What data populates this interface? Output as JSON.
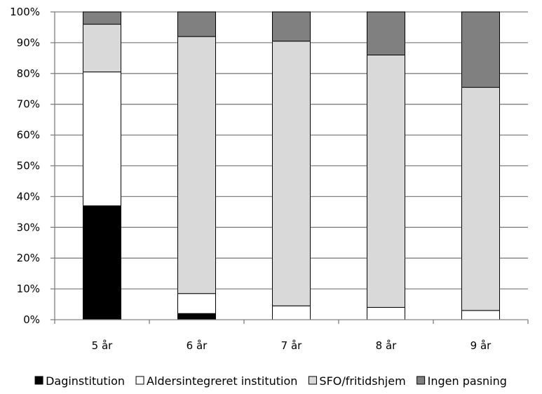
{
  "chart_data": {
    "type": "bar",
    "stacked": true,
    "normalized": true,
    "categories": [
      "5 år",
      "6 år",
      "7 år",
      "8 år",
      "9 år"
    ],
    "series": [
      {
        "name": "Daginstitution",
        "color": "#000000",
        "values": [
          37,
          2,
          0,
          0,
          0
        ]
      },
      {
        "name": "Aldersintegreret institution",
        "color": "#ffffff",
        "values": [
          43.5,
          6.5,
          4.5,
          4,
          3
        ]
      },
      {
        "name": "SFO/fritidshjem",
        "color": "#d9d9d9",
        "values": [
          15.5,
          83.5,
          86,
          82,
          72.5
        ]
      },
      {
        "name": "Ingen pasning",
        "color": "#808080",
        "values": [
          4,
          8,
          9.5,
          14,
          24.5
        ]
      }
    ],
    "y_ticks": [
      "0%",
      "10%",
      "20%",
      "30%",
      "40%",
      "50%",
      "60%",
      "70%",
      "80%",
      "90%",
      "100%"
    ],
    "ylim": [
      0,
      100
    ],
    "grid": true,
    "legend_position": "bottom",
    "title": "",
    "xlabel": "",
    "ylabel": ""
  }
}
